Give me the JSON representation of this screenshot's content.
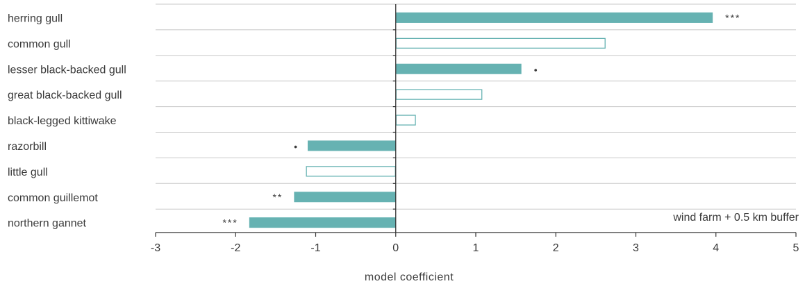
{
  "chart_data": {
    "type": "bar",
    "orientation": "horizontal",
    "categories": [
      "herring gull",
      "common gull",
      "lesser black-backed gull",
      "great black-backed gull",
      "black-legged kittiwake",
      "razorbill",
      "little gull",
      "common guillemot",
      "northern gannet"
    ],
    "values": [
      3.96,
      2.62,
      1.57,
      1.08,
      0.25,
      -1.1,
      -1.12,
      -1.27,
      -1.83
    ],
    "filled": [
      true,
      false,
      true,
      false,
      false,
      true,
      false,
      true,
      true
    ],
    "significance": [
      "***",
      "",
      "•",
      "",
      "",
      "•",
      "",
      "**",
      "***"
    ],
    "xlabel": "model coefficient",
    "xlim": [
      -3,
      5
    ],
    "xticks": [
      -3,
      -2,
      -1,
      0,
      1,
      2,
      3,
      4,
      5
    ],
    "annotation": "wind farm + 0.5 km buffer",
    "grid": true,
    "colors": {
      "bar": "#66b2b2",
      "text": "#3a3a3a",
      "grid": "#c8c8c8",
      "axis": "#333333"
    }
  }
}
